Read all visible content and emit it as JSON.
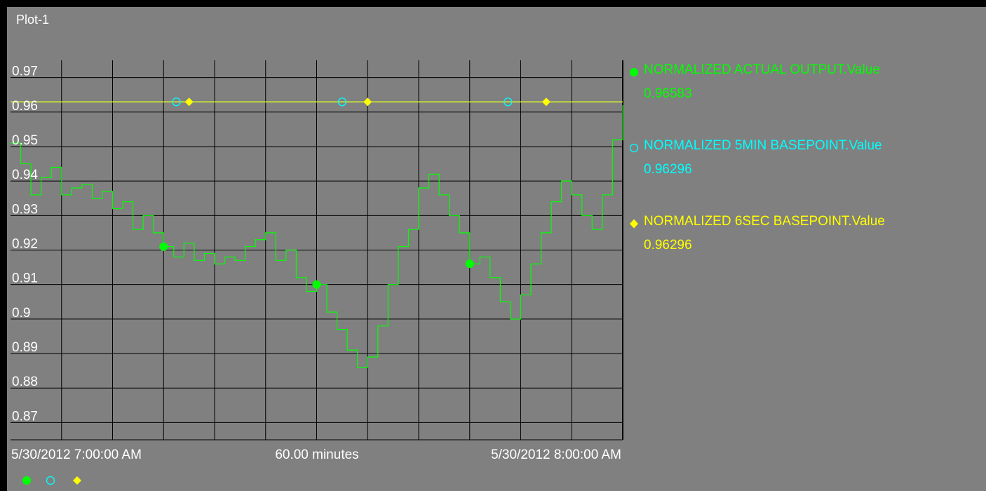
{
  "plot": {
    "title": "Plot-1"
  },
  "chart_data": {
    "type": "line",
    "title": "Plot-1",
    "ylim": [
      0.865,
      0.975
    ],
    "yticks": [
      0.87,
      0.88,
      0.89,
      0.9,
      0.91,
      0.92,
      0.93,
      0.94,
      0.95,
      0.96,
      0.97
    ],
    "ytick_labels": [
      "0.87",
      "0.88",
      "0.89",
      "0.9",
      "0.91",
      "0.92",
      "0.93",
      "0.94",
      "0.95",
      "0.96",
      "0.97"
    ],
    "x_unit": "minutes from 5/30/2012 6:35:00 AM",
    "xlim": [
      0,
      120
    ],
    "x_labels": {
      "left": "5/30/2012 7:00:00 AM",
      "center": "60.00 minutes",
      "right": "5/30/2012 8:00:00 AM"
    },
    "grid": true,
    "series": [
      {
        "name": "NORMALIZED ACTUAL OUTPUT.Value",
        "current_value": "0.96583",
        "color": "#00ff00",
        "marker": "filled-circle",
        "marker_x": [
          30,
          60,
          90
        ],
        "x": [
          0,
          2,
          4,
          6,
          8,
          10,
          12,
          14,
          16,
          18,
          20,
          22,
          24,
          26,
          28,
          30,
          32,
          34,
          36,
          38,
          40,
          42,
          44,
          46,
          48,
          50,
          52,
          54,
          56,
          58,
          60,
          62,
          64,
          66,
          68,
          70,
          72,
          74,
          76,
          78,
          80,
          82,
          84,
          86,
          88,
          90,
          92,
          94,
          96,
          98,
          100,
          102,
          104,
          106,
          108,
          110,
          112,
          114,
          116,
          118,
          120
        ],
        "y": [
          0.951,
          0.945,
          0.936,
          0.941,
          0.944,
          0.936,
          0.938,
          0.939,
          0.935,
          0.937,
          0.932,
          0.934,
          0.926,
          0.93,
          0.925,
          0.921,
          0.918,
          0.922,
          0.917,
          0.919,
          0.916,
          0.918,
          0.917,
          0.921,
          0.923,
          0.925,
          0.917,
          0.92,
          0.912,
          0.908,
          0.91,
          0.902,
          0.897,
          0.891,
          0.886,
          0.889,
          0.898,
          0.91,
          0.921,
          0.926,
          0.938,
          0.942,
          0.936,
          0.93,
          0.925,
          0.916,
          0.918,
          0.912,
          0.905,
          0.9,
          0.907,
          0.916,
          0.925,
          0.934,
          0.94,
          0.936,
          0.93,
          0.926,
          0.936,
          0.952,
          0.962
        ]
      },
      {
        "name": "NORMALIZED 5MIN BASEPOINT.Value",
        "current_value": "0.96296",
        "color": "#00ffff",
        "marker": "open-circle",
        "marker_x": [
          32.5,
          65,
          97.5
        ],
        "x": [
          0,
          120
        ],
        "y": [
          0.96296,
          0.96296
        ]
      },
      {
        "name": "NORMALIZED 6SEC BASEPOINT.Value",
        "current_value": "0.96296",
        "color": "#ffff00",
        "marker": "diamond",
        "marker_x": [
          35,
          70,
          105
        ],
        "x": [
          0,
          120
        ],
        "y": [
          0.96296,
          0.96296
        ]
      }
    ]
  }
}
